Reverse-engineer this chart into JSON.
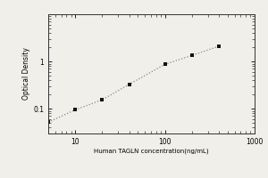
{
  "x_data": [
    5,
    10,
    20,
    40,
    100,
    200,
    400
  ],
  "y_data": [
    0.052,
    0.095,
    0.155,
    0.33,
    0.87,
    1.35,
    2.1
  ],
  "xlabel": "Human TAGLN concentration(ng/mL)",
  "ylabel": "Optical Density",
  "xlim": [
    5,
    1000
  ],
  "ylim": [
    0.03,
    10
  ],
  "yticks": [
    0.1,
    1
  ],
  "ytick_labels": [
    "0.1",
    "1"
  ],
  "xticks": [
    10,
    100,
    1000
  ],
  "xtick_labels": [
    "10",
    "100",
    "1000"
  ],
  "line_color": "#888888",
  "marker_color": "#111111",
  "background_color": "#f0efea",
  "xlabel_fontsize": 5.0,
  "ylabel_fontsize": 5.5,
  "tick_fontsize": 5.5
}
